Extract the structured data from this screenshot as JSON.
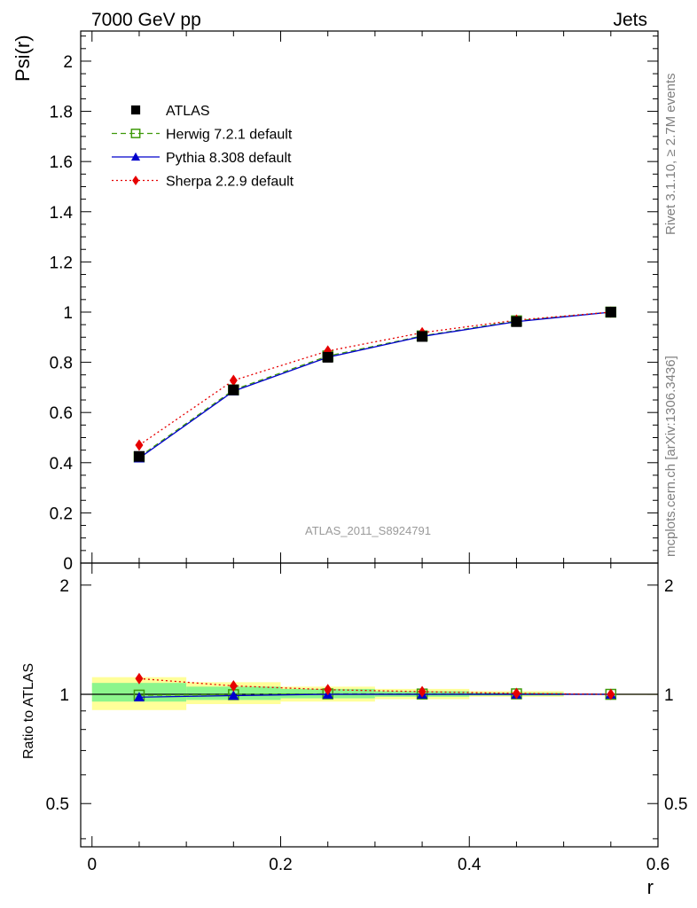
{
  "header": {
    "left": "7000 GeV pp",
    "right": "Jets"
  },
  "side_labels": {
    "top": "Rivet 3.1.10, ≥ 2.7M events",
    "bottom": "mcplots.cern.ch [arXiv:1306.3436]"
  },
  "chart_data": [
    {
      "type": "line",
      "panel": "main",
      "ylabel": "Psi(r)",
      "annotation": "ATLAS_2011_S8924791",
      "xlim": [
        -0.012,
        0.6
      ],
      "ylim": [
        0,
        2.12
      ],
      "yticks": [
        0,
        0.2,
        0.4,
        0.6,
        0.8,
        1,
        1.2,
        1.4,
        1.6,
        1.8,
        2
      ],
      "ytick_labels": [
        "0",
        "0.2",
        "0.4",
        "0.6",
        "0.8",
        "1",
        "1.2",
        "1.4",
        "1.6",
        "1.8",
        "2"
      ],
      "x": [
        0.05,
        0.15,
        0.25,
        0.35,
        0.45,
        0.55
      ],
      "series": [
        {
          "name": "ATLAS",
          "color": "#000000",
          "marker": "square",
          "line": "none",
          "values": [
            0.425,
            0.69,
            0.82,
            0.903,
            0.962,
            1.0
          ]
        },
        {
          "name": "Herwig 7.2.1 default",
          "color": "#3f9a0a",
          "marker": "open-square",
          "line": "dashed",
          "values": [
            0.423,
            0.69,
            0.825,
            0.905,
            0.965,
            1.0
          ]
        },
        {
          "name": "Pythia 8.308 default",
          "color": "#0000cc",
          "marker": "triangle",
          "line": "solid",
          "values": [
            0.418,
            0.685,
            0.82,
            0.903,
            0.962,
            1.0
          ]
        },
        {
          "name": "Sherpa 2.2.9 default",
          "color": "#e60000",
          "marker": "diamond",
          "line": "dotted",
          "values": [
            0.47,
            0.728,
            0.845,
            0.918,
            0.968,
            1.0
          ]
        }
      ],
      "legend": "upper-left"
    },
    {
      "type": "line",
      "panel": "ratio",
      "ylabel": "Ratio to ATLAS",
      "xlabel": "r",
      "xlim": [
        -0.012,
        0.6
      ],
      "ylim": [
        0.38,
        2.3
      ],
      "scale_y": "log",
      "xticks": [
        0,
        0.2,
        0.4,
        0.6
      ],
      "xtick_labels": [
        "0",
        "0.2",
        "0.4",
        "0.6"
      ],
      "yticks": [
        0.5,
        1,
        2
      ],
      "ytick_labels": [
        "0.5",
        "1",
        "2"
      ],
      "x": [
        0.05,
        0.15,
        0.25,
        0.35,
        0.45,
        0.55
      ],
      "bands": {
        "bins": [
          [
            0,
            0.1
          ],
          [
            0.1,
            0.2
          ],
          [
            0.2,
            0.3
          ],
          [
            0.3,
            0.4
          ],
          [
            0.4,
            0.5
          ],
          [
            0.5,
            0.6
          ]
        ],
        "yellow_color": "#ffff99",
        "green_color": "#8cf58c",
        "yellow": [
          [
            0.905,
            1.115
          ],
          [
            0.94,
            1.08
          ],
          [
            0.955,
            1.05
          ],
          [
            0.97,
            1.035
          ],
          [
            0.985,
            1.02
          ],
          [
            0.996,
            1.004
          ]
        ],
        "green": [
          [
            0.955,
            1.075
          ],
          [
            0.965,
            1.05
          ],
          [
            0.975,
            1.035
          ],
          [
            0.985,
            1.02
          ],
          [
            0.992,
            1.01
          ],
          [
            0.998,
            1.002
          ]
        ]
      },
      "series": [
        {
          "name": "Herwig 7.2.1 default",
          "color": "#3f9a0a",
          "marker": "open-square",
          "line": "dashed",
          "values": [
            0.995,
            0.998,
            1.003,
            1.002,
            1.003,
            1.0
          ]
        },
        {
          "name": "Pythia 8.308 default",
          "color": "#0000cc",
          "marker": "triangle",
          "line": "solid",
          "values": [
            0.982,
            0.992,
            1.0,
            1.0,
            1.0,
            1.0
          ]
        },
        {
          "name": "Sherpa 2.2.9 default",
          "color": "#e60000",
          "marker": "diamond",
          "line": "dotted",
          "values": [
            1.105,
            1.055,
            1.03,
            1.017,
            1.006,
            1.0
          ]
        }
      ]
    }
  ]
}
